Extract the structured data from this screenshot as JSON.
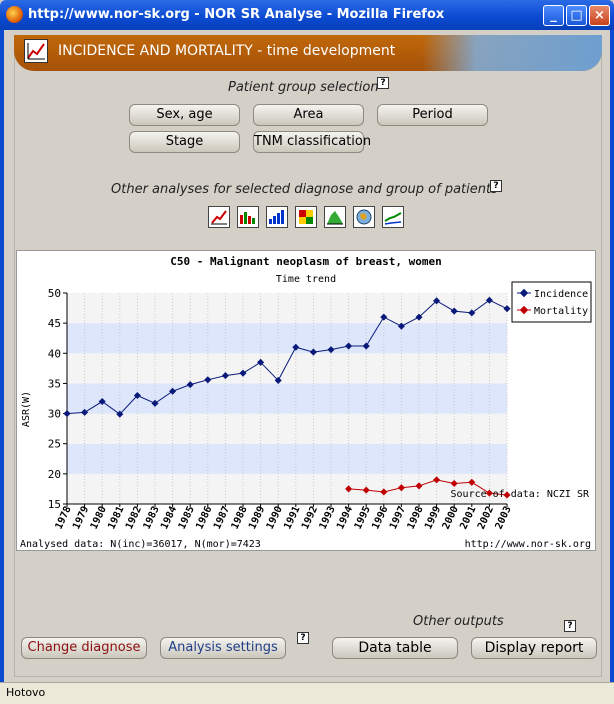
{
  "window": {
    "title": "http://www.nor-sk.org - NOR SR Analyse - Mozilla Firefox"
  },
  "header": {
    "title": "INCIDENCE AND MORTALITY - time development"
  },
  "patient_group": {
    "title": "Patient group selection",
    "help": "?",
    "buttons": [
      "Sex, age",
      "Area",
      "Period",
      "Stage",
      "TNM classification"
    ]
  },
  "other_analyses": {
    "title": "Other analyses for selected diagnose and group of patients",
    "help": "?",
    "tools": [
      "line-chart-icon",
      "bar-histogram-icon",
      "bar-chart-icon",
      "table-grid-icon",
      "area-chart-icon",
      "map-globe-icon",
      "trend-chart-icon"
    ]
  },
  "chart_data": {
    "type": "line",
    "title": "C50 - Malignant neoplasm of breast, women",
    "subtitle": "Time trend",
    "ylabel": "ASR(W)",
    "ylim": [
      15,
      50
    ],
    "yticks": [
      15,
      20,
      25,
      30,
      35,
      40,
      45,
      50
    ],
    "categories": [
      "1978",
      "1979",
      "1980",
      "1981",
      "1982",
      "1983",
      "1984",
      "1985",
      "1986",
      "1987",
      "1988",
      "1989",
      "1990",
      "1991",
      "1992",
      "1993",
      "1994",
      "1995",
      "1996",
      "1997",
      "1998",
      "1999",
      "2000",
      "2001",
      "2002",
      "2003"
    ],
    "series": [
      {
        "name": "Incidence",
        "color": "#0a1a7a",
        "values": [
          30.0,
          30.2,
          32.0,
          29.9,
          33.0,
          31.7,
          33.7,
          34.8,
          35.6,
          36.3,
          36.7,
          38.5,
          35.5,
          41.0,
          40.2,
          40.6,
          41.2,
          41.2,
          46.0,
          44.5,
          46.0,
          48.7,
          47.0,
          46.7,
          48.8,
          47.4
        ]
      },
      {
        "name": "Mortality",
        "color": "#c00000",
        "values": [
          null,
          null,
          null,
          null,
          null,
          null,
          null,
          null,
          null,
          null,
          null,
          null,
          null,
          null,
          null,
          null,
          17.5,
          17.3,
          17.0,
          17.7,
          18.0,
          19.0,
          18.4,
          18.6,
          16.8,
          16.5
        ]
      }
    ],
    "grid": true,
    "legend": "top-right",
    "source_note": "Source of data: NCZI SR",
    "footer_left": "Analysed data: N(inc)=36017, N(mor)=7423",
    "footer_right": "http://www.nor-sk.org"
  },
  "bottom": {
    "other_outputs": "Other outputs",
    "change_diagnose": "Change diagnose",
    "analysis_settings": "Analysis settings",
    "data_table": "Data table",
    "display_report": "Display report",
    "help": "?",
    "colors": {
      "change_diagnose": "#8b1010",
      "analysis_settings": "#1f3d8a"
    }
  },
  "status": {
    "text": "Hotovo"
  }
}
